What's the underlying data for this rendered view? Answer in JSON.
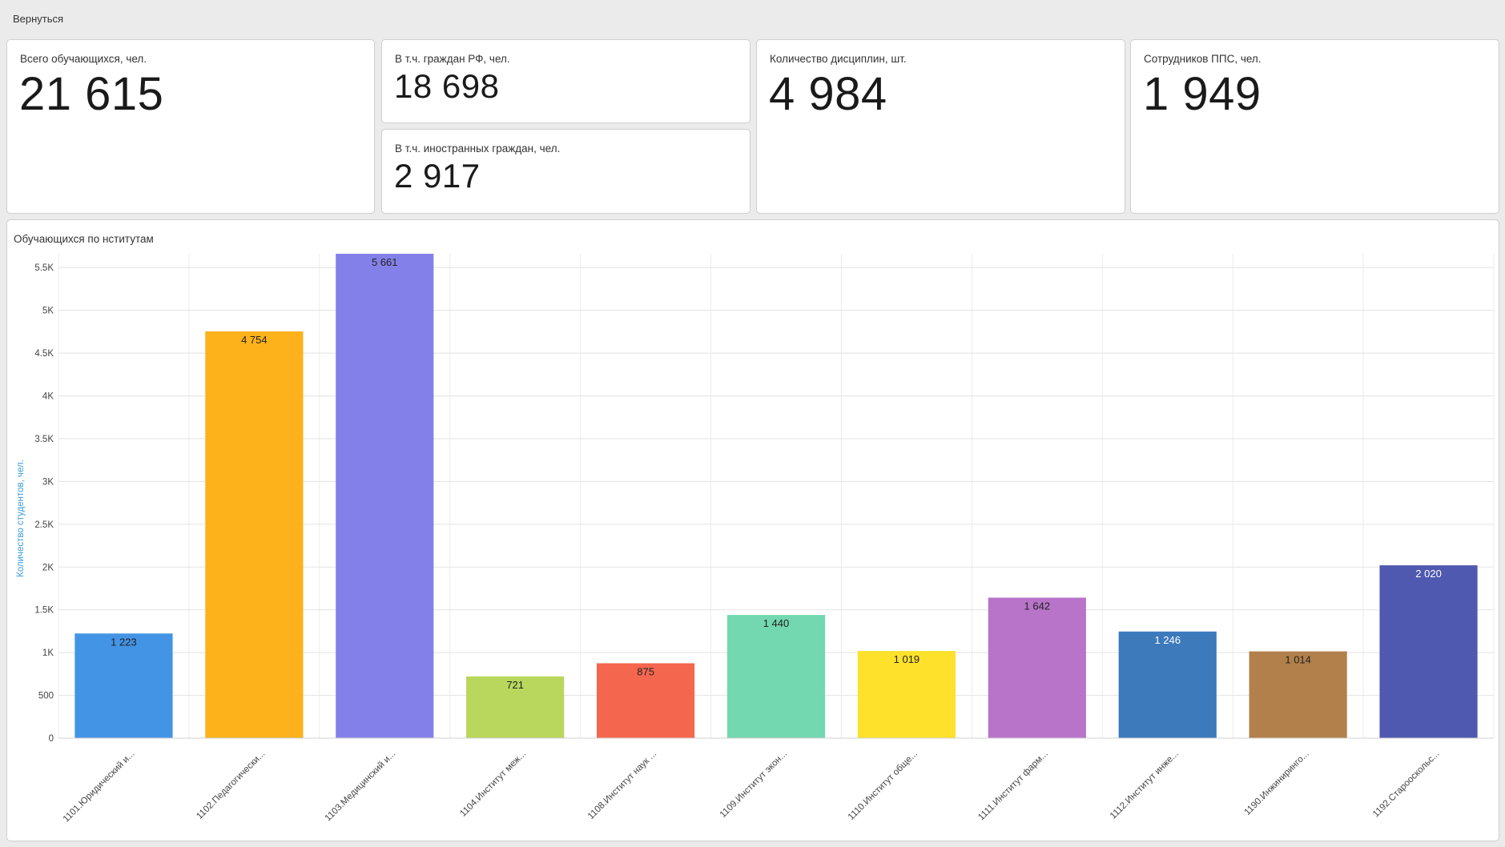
{
  "nav": {
    "back_label": "Вернуться"
  },
  "kpis": {
    "total_students": {
      "label": "Всего обучающихся, чел.",
      "value": "21 615"
    },
    "rf_citizens": {
      "label": "В т.ч. граждан РФ, чел.",
      "value": "18 698"
    },
    "foreign_citizens": {
      "label": "В т.ч. иностранных граждан, чел.",
      "value": "2 917"
    },
    "disciplines": {
      "label": "Количество дисциплин, шт.",
      "value": "4 984"
    },
    "staff": {
      "label": "Сотрудников ППС, чел.",
      "value": "1 949"
    }
  },
  "chart_title": "Обучающихся по нститутам",
  "chart_data": {
    "type": "bar",
    "ylabel": "Количество студентов, чел.",
    "xlabel": "",
    "ylim": [
      0,
      5661
    ],
    "yticks": [
      {
        "value": 0,
        "label": "0"
      },
      {
        "value": 500,
        "label": "500"
      },
      {
        "value": 1000,
        "label": "1K"
      },
      {
        "value": 1500,
        "label": "1.5K"
      },
      {
        "value": 2000,
        "label": "2K"
      },
      {
        "value": 2500,
        "label": "2.5K"
      },
      {
        "value": 3000,
        "label": "3K"
      },
      {
        "value": 3500,
        "label": "3.5K"
      },
      {
        "value": 4000,
        "label": "4K"
      },
      {
        "value": 4500,
        "label": "4.5K"
      },
      {
        "value": 5000,
        "label": "5K"
      },
      {
        "value": 5500,
        "label": "5.5K"
      }
    ],
    "grid": true,
    "categories": [
      "1101.Юридический и...",
      "1102.Педагогически...",
      "1103.Медицинский и...",
      "1104.Институт меж...",
      "1108.Институт наук ...",
      "1109.Институт экон...",
      "1110.Институт обще...",
      "1111.Институт фарм...",
      "1112.Институт инже...",
      "1190.Инжиниринго...",
      "1192.Старооскольс..."
    ],
    "values": [
      1223,
      4754,
      5661,
      721,
      875,
      1440,
      1019,
      1642,
      1246,
      1014,
      2020
    ],
    "value_labels": [
      "1 223",
      "4 754",
      "5 661",
      "721",
      "875",
      "1 440",
      "1 019",
      "1 642",
      "1 246",
      "1 014",
      "2 020"
    ],
    "colors": [
      "#4394e5",
      "#fdb21c",
      "#8480e9",
      "#b9d75c",
      "#f4674e",
      "#73d7b0",
      "#fee12b",
      "#b874c9",
      "#3d7abc",
      "#b2804b",
      "#5059b0"
    ],
    "label_colors": [
      "#222222",
      "#222222",
      "#222222",
      "#222222",
      "#222222",
      "#222222",
      "#222222",
      "#222222",
      "#ffffff",
      "#222222",
      "#ffffff"
    ],
    "axis_label_color": "#3a9bd9"
  }
}
